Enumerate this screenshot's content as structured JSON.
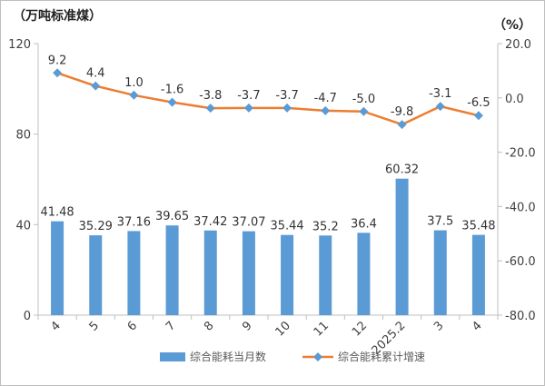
{
  "chart_data": {
    "type": "bar+line",
    "title": "",
    "left_unit": "（万吨标准煤）",
    "right_unit": "（%）",
    "categories": [
      "4",
      "5",
      "6",
      "7",
      "8",
      "9",
      "10",
      "11",
      "12",
      "2025.2",
      "3",
      "4"
    ],
    "bar_series": {
      "name": "综合能耗当月数",
      "color": "#5b9bd5",
      "values": [
        41.48,
        35.29,
        37.16,
        39.65,
        37.42,
        37.07,
        35.44,
        35.2,
        36.4,
        60.32,
        37.5,
        35.48
      ],
      "labels": [
        "41.48",
        "35.29",
        "37.16",
        "39.65",
        "37.42",
        "37.07",
        "35.44",
        "35.2",
        "36.4",
        "60.32",
        "37.5",
        "35.48"
      ]
    },
    "line_series": {
      "name": "综合能耗累计增速",
      "color": "#ed7d31",
      "values": [
        9.2,
        4.4,
        1.0,
        -1.6,
        -3.8,
        -3.7,
        -3.7,
        -4.7,
        -5.0,
        -9.8,
        -3.1,
        -6.5
      ],
      "labels": [
        "9.2",
        "4.4",
        "1.0",
        "-1.6",
        "-3.8",
        "-3.7",
        "-3.7",
        "-4.7",
        "-5.0",
        "-9.8",
        "-3.1",
        "-6.5"
      ]
    },
    "y_left": {
      "min": 0,
      "max": 120,
      "ticks": [
        "0",
        "40",
        "80",
        "120"
      ]
    },
    "y_right": {
      "min": -80,
      "max": 20,
      "ticks": [
        "20.0",
        "0.0",
        "-20.0",
        "-40.0",
        "-60.0",
        "-80.0"
      ]
    },
    "grid": false,
    "legend_position": "bottom"
  }
}
